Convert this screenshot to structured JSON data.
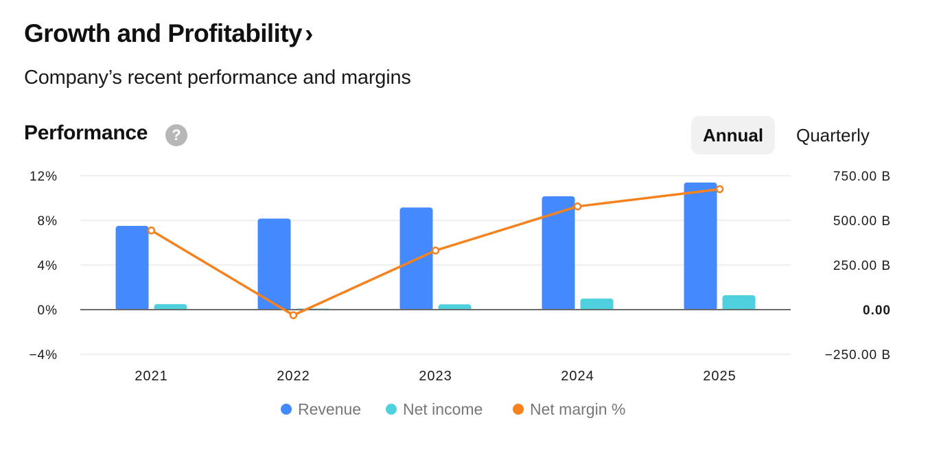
{
  "header": {
    "title": "Growth and Profitability",
    "title_chevron": "›",
    "subtitle": "Company’s recent performance and margins"
  },
  "section": {
    "title": "Performance",
    "help_icon": "question-circle-icon",
    "help_glyph": "?"
  },
  "period_toggle": {
    "options": [
      "Annual",
      "Quarterly"
    ],
    "selected": "Annual"
  },
  "colors": {
    "revenue": "#4589FF",
    "net_income": "#4FD0DF",
    "net_margin": "#F5821F",
    "grid": "#EFEFEF",
    "baseline": "#6B6B6B"
  },
  "chart_data": {
    "type": "bar",
    "title": "Performance",
    "categories": [
      "2021",
      "2022",
      "2023",
      "2024",
      "2025"
    ],
    "series": [
      {
        "name": "Revenue",
        "type": "bar",
        "axis": "right",
        "unit": "B",
        "values": [
          469,
          510,
          572,
          635,
          712
        ]
      },
      {
        "name": "Net income",
        "type": "bar",
        "axis": "right",
        "unit": "B",
        "values": [
          31,
          3,
          30,
          62,
          81
        ]
      },
      {
        "name": "Net margin %",
        "type": "line",
        "axis": "left",
        "unit": "%",
        "values": [
          7.1,
          -0.5,
          5.3,
          9.25,
          10.8
        ]
      }
    ],
    "left_axis": {
      "range": [
        -4,
        12
      ],
      "ticks": [
        12,
        8,
        4,
        0,
        -4
      ],
      "tick_labels": [
        "12%",
        "8%",
        "4%",
        "0%",
        "−4%"
      ]
    },
    "right_axis": {
      "range": [
        -250,
        750
      ],
      "ticks": [
        750,
        500,
        250,
        0,
        -250
      ],
      "tick_labels": [
        "750.00 B",
        "500.00 B",
        "250.00 B",
        "0.00",
        "−250.00 B"
      ],
      "bold_tick": "0.00"
    },
    "grid": true,
    "legend": {
      "position": "bottom-center",
      "entries": [
        "Revenue",
        "Net income",
        "Net margin %"
      ]
    }
  }
}
